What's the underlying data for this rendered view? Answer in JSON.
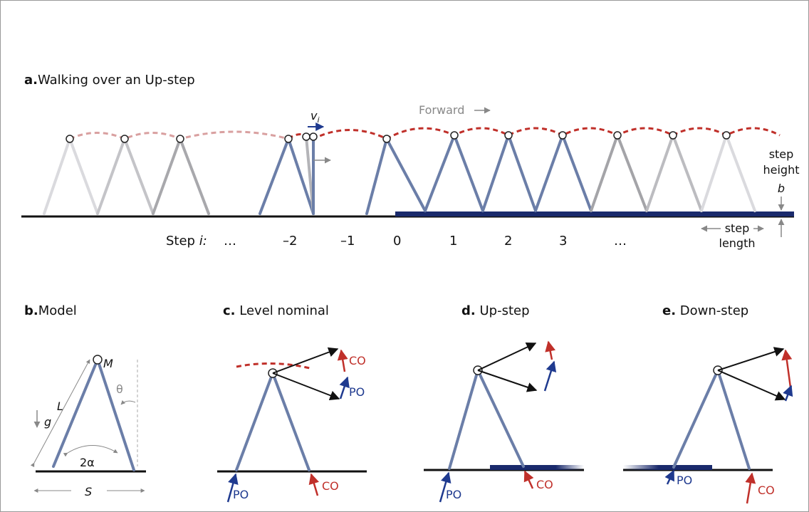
{
  "panel_a": {
    "letter": "a.",
    "title": "Walking over an Up-step",
    "forward": "Forward",
    "velocity": "v",
    "velocity_subscript": "i",
    "step_prefix": "Step",
    "step_index": "i:",
    "steps": [
      "…",
      "–2",
      "–1",
      "0",
      "1",
      "2",
      "3",
      "…"
    ],
    "step_height": [
      "step",
      "height"
    ],
    "step_height_symbol": "b",
    "step_length": [
      "step",
      "length"
    ]
  },
  "panel_b": {
    "letter": "b.",
    "title": "Model",
    "gravity": "g",
    "mass": "M",
    "angle": "θ",
    "leg_length": "L",
    "leg_angle": "2α",
    "step": "S"
  },
  "panel_c": {
    "letter": "c.",
    "title": "Level nominal",
    "top_labels": [
      "CO",
      "PO"
    ],
    "bottom_labels": [
      "PO",
      "CO"
    ]
  },
  "panel_d": {
    "letter": "d.",
    "title": "Up-step",
    "bottom_labels": [
      "PO",
      "CO"
    ]
  },
  "panel_e": {
    "letter": "e.",
    "title": "Down-step",
    "bottom_labels": [
      "PO",
      "CO"
    ]
  }
}
